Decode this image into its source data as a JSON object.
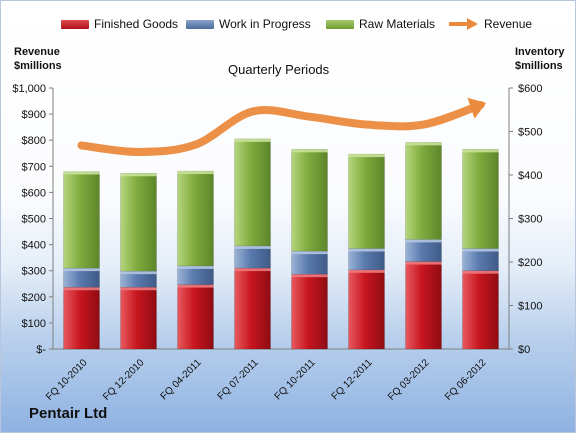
{
  "company": "Pentair Ltd",
  "subtitle": "Quarterly Periods",
  "left_axis_title": [
    "Revenue",
    "$millions"
  ],
  "right_axis_title": [
    "Inventory",
    "$millions"
  ],
  "legend": [
    {
      "label": "Finished Goods",
      "color": "#c0141e"
    },
    {
      "label": "Work in Progress",
      "color": "#5676a8"
    },
    {
      "label": "Raw Materials",
      "color": "#7ea93c"
    },
    {
      "label": "Revenue",
      "color": "#ea8a3c"
    }
  ],
  "chart_data": {
    "type": "bar",
    "stacked": true,
    "categories": [
      "FQ 10-2010",
      "FQ 12-2010",
      "FQ 04-2011",
      "FQ 07-2011",
      "FQ 10-2011",
      "FQ 12-2011",
      "FQ 03-2012",
      "FQ 06-2012"
    ],
    "series": [
      {
        "name": "Finished Goods",
        "axis": "right",
        "values": [
          142,
          142,
          148,
          186,
          172,
          182,
          201,
          180
        ]
      },
      {
        "name": "Work in Progress",
        "axis": "right",
        "values": [
          44,
          37,
          43,
          51,
          53,
          49,
          51,
          51
        ]
      },
      {
        "name": "Raw Materials",
        "axis": "right",
        "values": [
          222,
          225,
          218,
          246,
          234,
          217,
          223,
          228
        ]
      },
      {
        "name": "Revenue",
        "type": "line",
        "axis": "left",
        "values": [
          780,
          755,
          783,
          910,
          890,
          860,
          860,
          935
        ]
      }
    ],
    "left_axis": {
      "title": "Revenue $millions",
      "ylim": [
        0,
        1000
      ],
      "ticks": [
        "$-",
        "$100",
        "$200",
        "$300",
        "$400",
        "$500",
        "$600",
        "$700",
        "$800",
        "$900",
        "$1,000"
      ]
    },
    "right_axis": {
      "title": "Inventory $millions",
      "ylim": [
        0,
        600
      ],
      "ticks": [
        "$0",
        "$100",
        "$200",
        "$300",
        "$400",
        "$500",
        "$600"
      ]
    },
    "xlabel": "Quarterly Periods",
    "grid": false,
    "legend_position": "top"
  }
}
